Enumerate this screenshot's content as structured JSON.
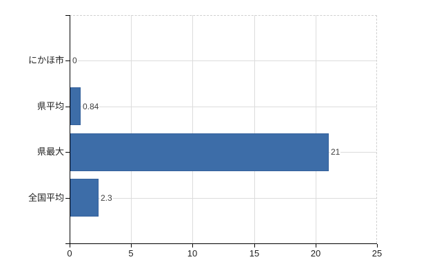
{
  "chart_data": {
    "type": "bar",
    "orientation": "horizontal",
    "title": "",
    "xlabel": "",
    "ylabel": "",
    "categories": [
      "にかほ市",
      "県平均",
      "県最大",
      "全国平均"
    ],
    "values": [
      0,
      0.84,
      21,
      2.3
    ],
    "value_labels": [
      "0",
      "0.84",
      "21",
      "2.3"
    ],
    "xlim": [
      0,
      25
    ],
    "x_ticks": [
      0,
      5,
      10,
      15,
      20,
      25
    ],
    "x_tick_labels": [
      "0",
      "5",
      "10",
      "15",
      "20",
      "25"
    ],
    "grid": "on",
    "legend": "none",
    "colors": {
      "bar_fill": "#3d6da8",
      "bar_border": "#35619c",
      "gridline": "#dcdcdc",
      "plot_border": "#cfcfcf",
      "axis": "#000000",
      "category_text": "#1d1d1d",
      "tick_text": "#1d1d1d",
      "value_text": "#3d3d3d",
      "background": "#ffffff"
    }
  }
}
